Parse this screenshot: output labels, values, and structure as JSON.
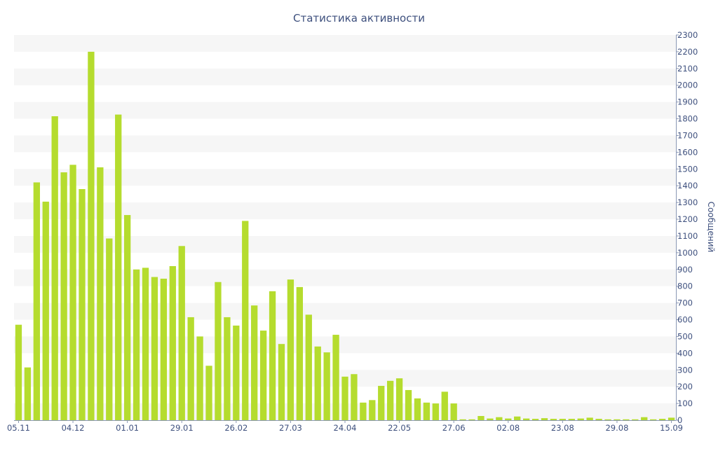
{
  "chart_data": {
    "type": "bar",
    "title": "Статистика активности",
    "xlabel": "",
    "ylabel": "Сообщений",
    "ylim": [
      0,
      2300
    ],
    "y_ticks": [
      0,
      100,
      200,
      300,
      400,
      500,
      600,
      700,
      800,
      900,
      1000,
      1100,
      1200,
      1300,
      1400,
      1500,
      1600,
      1700,
      1800,
      1900,
      2000,
      2100,
      2200,
      2300
    ],
    "y_axis_side": "right",
    "grid": "alternating horizontal bands",
    "bar_color": "#b5dc2e",
    "band_color": "#f6f6f6",
    "text_color": "#3d4f7d",
    "x_tick_labels": [
      {
        "label": "05.11",
        "index": 0
      },
      {
        "label": "04.12",
        "index": 6
      },
      {
        "label": "01.01",
        "index": 12
      },
      {
        "label": "29.01",
        "index": 18
      },
      {
        "label": "26.02",
        "index": 24
      },
      {
        "label": "27.03",
        "index": 30
      },
      {
        "label": "24.04",
        "index": 36
      },
      {
        "label": "22.05",
        "index": 42
      },
      {
        "label": "27.06",
        "index": 48
      },
      {
        "label": "02.08",
        "index": 54
      },
      {
        "label": "23.08",
        "index": 60
      },
      {
        "label": "29.08",
        "index": 66
      },
      {
        "label": "15.09",
        "index": 72
      }
    ],
    "values": [
      570,
      315,
      1420,
      1305,
      1815,
      1480,
      1525,
      1380,
      2200,
      1510,
      1085,
      1825,
      1225,
      900,
      910,
      855,
      845,
      920,
      1040,
      615,
      500,
      325,
      825,
      615,
      565,
      1190,
      685,
      535,
      770,
      455,
      840,
      795,
      630,
      440,
      405,
      510,
      260,
      275,
      105,
      120,
      205,
      235,
      250,
      180,
      130,
      105,
      100,
      170,
      100,
      5,
      5,
      25,
      10,
      18,
      10,
      22,
      10,
      8,
      12,
      8,
      8,
      8,
      10,
      15,
      8,
      5,
      5,
      5,
      5,
      18,
      5,
      8,
      15
    ]
  }
}
